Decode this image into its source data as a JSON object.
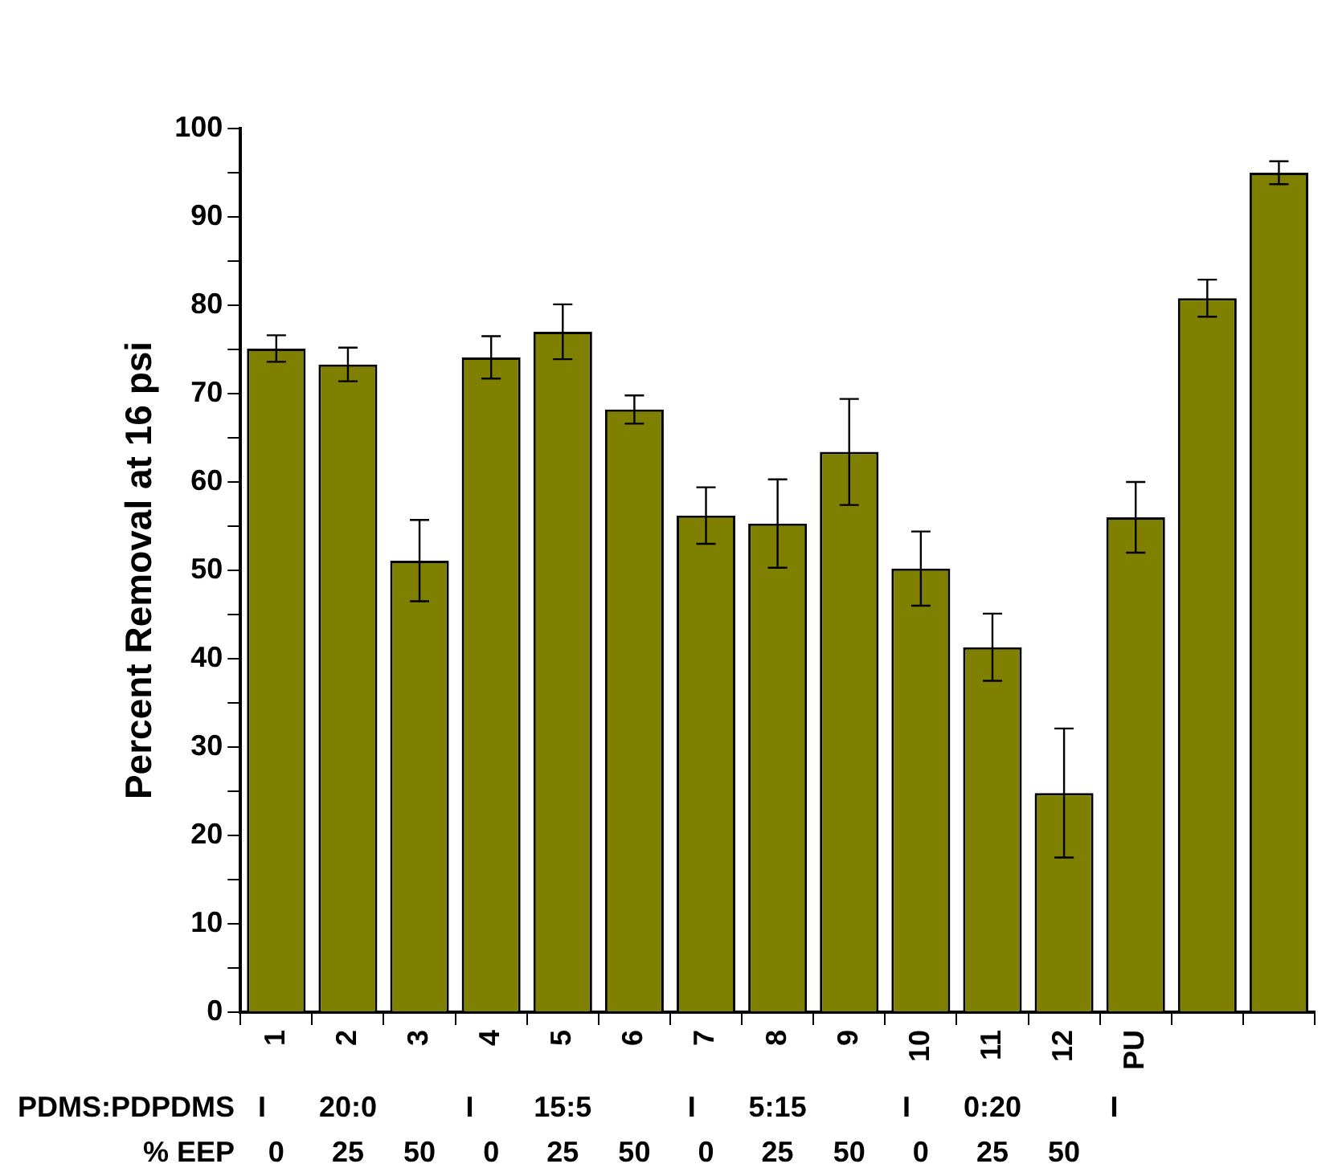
{
  "chart_data": {
    "type": "bar",
    "ylabel": "Percent Removal at 16 psi",
    "categories": [
      "1",
      "2",
      "3",
      "4",
      "5",
      "6",
      "7",
      "8",
      "9",
      "10",
      "11",
      "12",
      "PU",
      null,
      null
    ],
    "values": [
      75.1,
      73.3,
      51.1,
      74.1,
      77.0,
      68.2,
      56.2,
      55.3,
      63.4,
      50.2,
      41.3,
      24.8,
      56.0,
      80.8,
      95.0
    ],
    "errors": [
      1.5,
      1.9,
      4.6,
      2.4,
      3.1,
      1.6,
      3.2,
      5.0,
      6.0,
      4.2,
      3.8,
      7.3,
      4.0,
      2.1,
      1.3
    ],
    "color": "#808000",
    "ylim": [
      0,
      100
    ],
    "yticks": [
      0,
      {
        "value": 5,
        "label": null
      },
      10,
      {
        "value": 15,
        "label": null
      },
      20,
      {
        "value": 25,
        "label": null
      },
      30,
      {
        "value": 35,
        "label": null
      },
      40,
      {
        "value": 45,
        "label": null
      },
      50,
      {
        "value": 55,
        "label": null
      },
      60,
      {
        "value": 65,
        "label": null
      },
      70,
      {
        "value": 75,
        "label": null
      },
      80,
      {
        "value": 85,
        "label": null
      },
      90,
      {
        "value": 95,
        "label": null
      },
      100
    ],
    "grid": false,
    "legend": false,
    "annotations": [
      "PDMS:PDPDMS",
      "I",
      "20:0",
      "I",
      "15:5",
      "I",
      "5:15",
      "I",
      "0:20",
      "I",
      "% EEP",
      "0",
      "25",
      "50",
      "0",
      "25",
      "50",
      "0",
      "25",
      "50",
      "0",
      "25",
      "50"
    ]
  }
}
